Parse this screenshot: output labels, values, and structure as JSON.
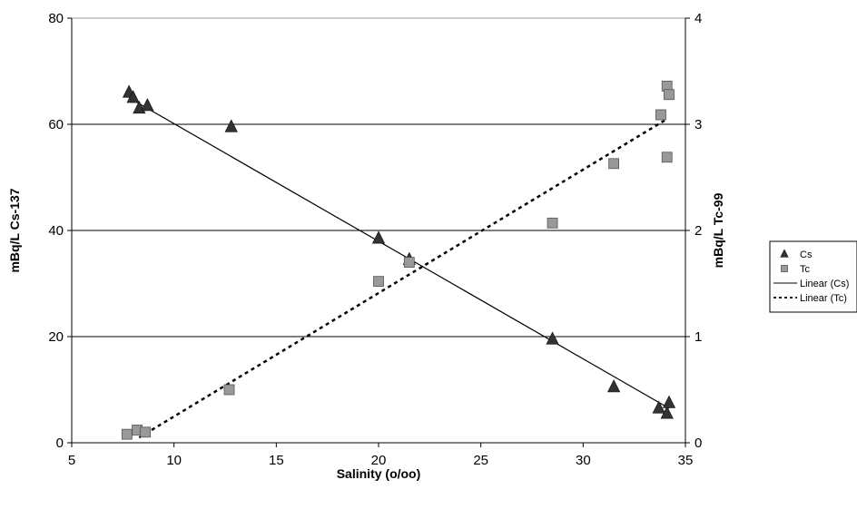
{
  "chart_data": {
    "type": "scatter",
    "title": "",
    "xlabel": "Salinity (o/oo)",
    "ylabel": "mBq/L Cs-137",
    "y2label": "mBq/L Tc-99",
    "xlim": [
      5,
      35
    ],
    "ylim": [
      0,
      80
    ],
    "y2lim": [
      0,
      4
    ],
    "xticks": [
      "5",
      "10",
      "15",
      "20",
      "25",
      "30",
      "35"
    ],
    "yticks": [
      "0",
      "20",
      "40",
      "60",
      "80"
    ],
    "y2ticks": [
      "0",
      "1",
      "2",
      "3",
      "4"
    ],
    "grid": "horizontal",
    "legend_position": "right",
    "series": [
      {
        "name": "Cs",
        "axis": "left",
        "marker": "triangle",
        "color": "#333333",
        "points": [
          [
            7.8,
            66
          ],
          [
            8.0,
            65
          ],
          [
            8.3,
            63
          ],
          [
            8.7,
            63.5
          ],
          [
            12.8,
            59.5
          ],
          [
            20.0,
            38.5
          ],
          [
            21.5,
            34.5
          ],
          [
            28.5,
            19.5
          ],
          [
            31.5,
            10.5
          ],
          [
            33.7,
            6.5
          ],
          [
            34.1,
            5.5
          ],
          [
            34.2,
            7.5
          ]
        ]
      },
      {
        "name": "Tc",
        "axis": "right",
        "marker": "square",
        "color": "#999999",
        "points": [
          [
            7.7,
            0.08
          ],
          [
            8.2,
            0.12
          ],
          [
            8.6,
            0.1
          ],
          [
            12.7,
            0.5
          ],
          [
            20.0,
            1.52
          ],
          [
            21.5,
            1.7
          ],
          [
            28.5,
            2.07
          ],
          [
            31.5,
            2.63
          ],
          [
            33.8,
            3.09
          ],
          [
            34.1,
            3.36
          ],
          [
            34.2,
            3.28
          ],
          [
            34.1,
            2.69
          ]
        ]
      },
      {
        "name": "Linear (Cs)",
        "axis": "left",
        "kind": "trendline",
        "style": "solid",
        "color": "#000000",
        "points": [
          [
            7.8,
            65
          ],
          [
            34.2,
            6.5
          ]
        ]
      },
      {
        "name": "Linear (Tc)",
        "axis": "right",
        "kind": "trendline",
        "style": "dotted",
        "color": "#000000",
        "points": [
          [
            8.3,
            0.05
          ],
          [
            34.1,
            3.05
          ]
        ]
      }
    ]
  }
}
